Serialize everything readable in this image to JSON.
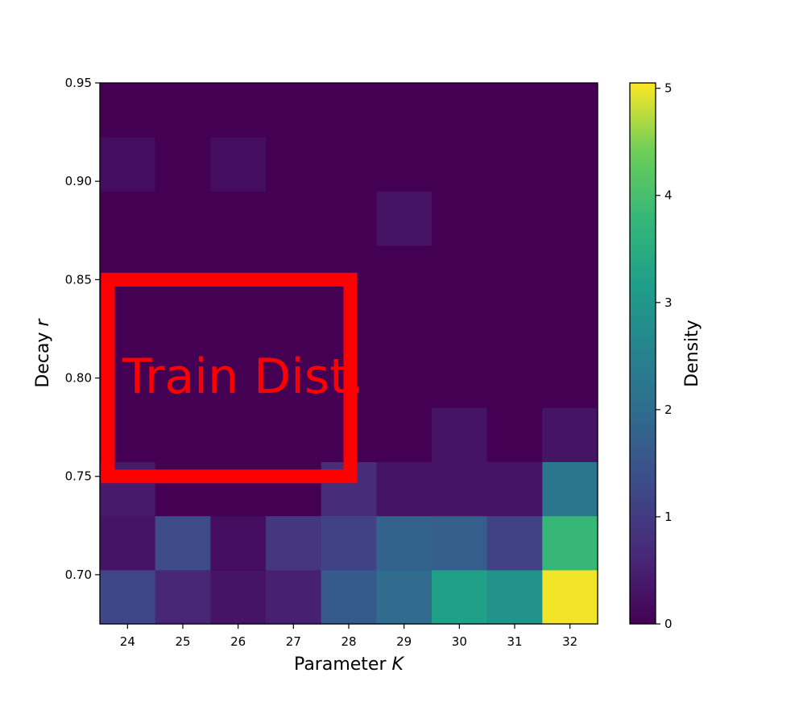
{
  "chart_data": {
    "type": "heatmap",
    "x_categories": [
      "24",
      "25",
      "26",
      "27",
      "28",
      "29",
      "30",
      "31",
      "32"
    ],
    "xlabel": "Parameter K",
    "ylabel": "Decay r",
    "y_tick_labels": [
      "0.70",
      "0.75",
      "0.80",
      "0.85",
      "0.90",
      "0.95"
    ],
    "y_ticks": [
      0.7,
      0.75,
      0.8,
      0.85,
      0.9,
      0.95
    ],
    "ylim": [
      0.675,
      0.95
    ],
    "y_bin_edges": [
      0.675,
      0.7025,
      0.73,
      0.7575,
      0.785,
      0.8125,
      0.84,
      0.8675,
      0.895,
      0.9225,
      0.95
    ],
    "values": [
      [
        1.2,
        0.6,
        0.3,
        0.5,
        1.6,
        2.0,
        3.2,
        2.9,
        5.0
      ],
      [
        0.3,
        1.3,
        0.2,
        0.9,
        1.1,
        1.8,
        1.7,
        1.1,
        3.8
      ],
      [
        0.4,
        0.0,
        0.0,
        0.0,
        0.7,
        0.3,
        0.3,
        0.3,
        2.2
      ],
      [
        0.0,
        0.0,
        0.0,
        0.0,
        0.0,
        0.0,
        0.3,
        0.0,
        0.3
      ],
      [
        0.0,
        0.0,
        0.0,
        0.0,
        0.0,
        0.0,
        0.0,
        0.0,
        0.0
      ],
      [
        0.0,
        0.0,
        0.0,
        0.0,
        0.0,
        0.0,
        0.0,
        0.0,
        0.0
      ],
      [
        0.0,
        0.0,
        0.0,
        0.0,
        0.0,
        0.0,
        0.0,
        0.0,
        0.0
      ],
      [
        0.0,
        0.0,
        0.0,
        0.0,
        0.0,
        0.3,
        0.0,
        0.0,
        0.0
      ],
      [
        0.2,
        0.0,
        0.2,
        0.0,
        0.0,
        0.0,
        0.0,
        0.0,
        0.0
      ],
      [
        0.0,
        0.0,
        0.0,
        0.0,
        0.0,
        0.0,
        0.0,
        0.0,
        0.0
      ]
    ],
    "colorbar": {
      "label": "Density",
      "colormap": "viridis",
      "range": [
        0,
        5.05
      ],
      "ticks": [
        0,
        1,
        2,
        3,
        4,
        5
      ],
      "tick_labels": [
        "0",
        "1",
        "2",
        "3",
        "4",
        "5"
      ]
    },
    "annotation": {
      "text": "Train Dist.",
      "color": "#ff0000",
      "rect_k": [
        "24",
        "28"
      ],
      "rect_r": [
        0.75,
        0.85
      ]
    },
    "grid": false
  }
}
